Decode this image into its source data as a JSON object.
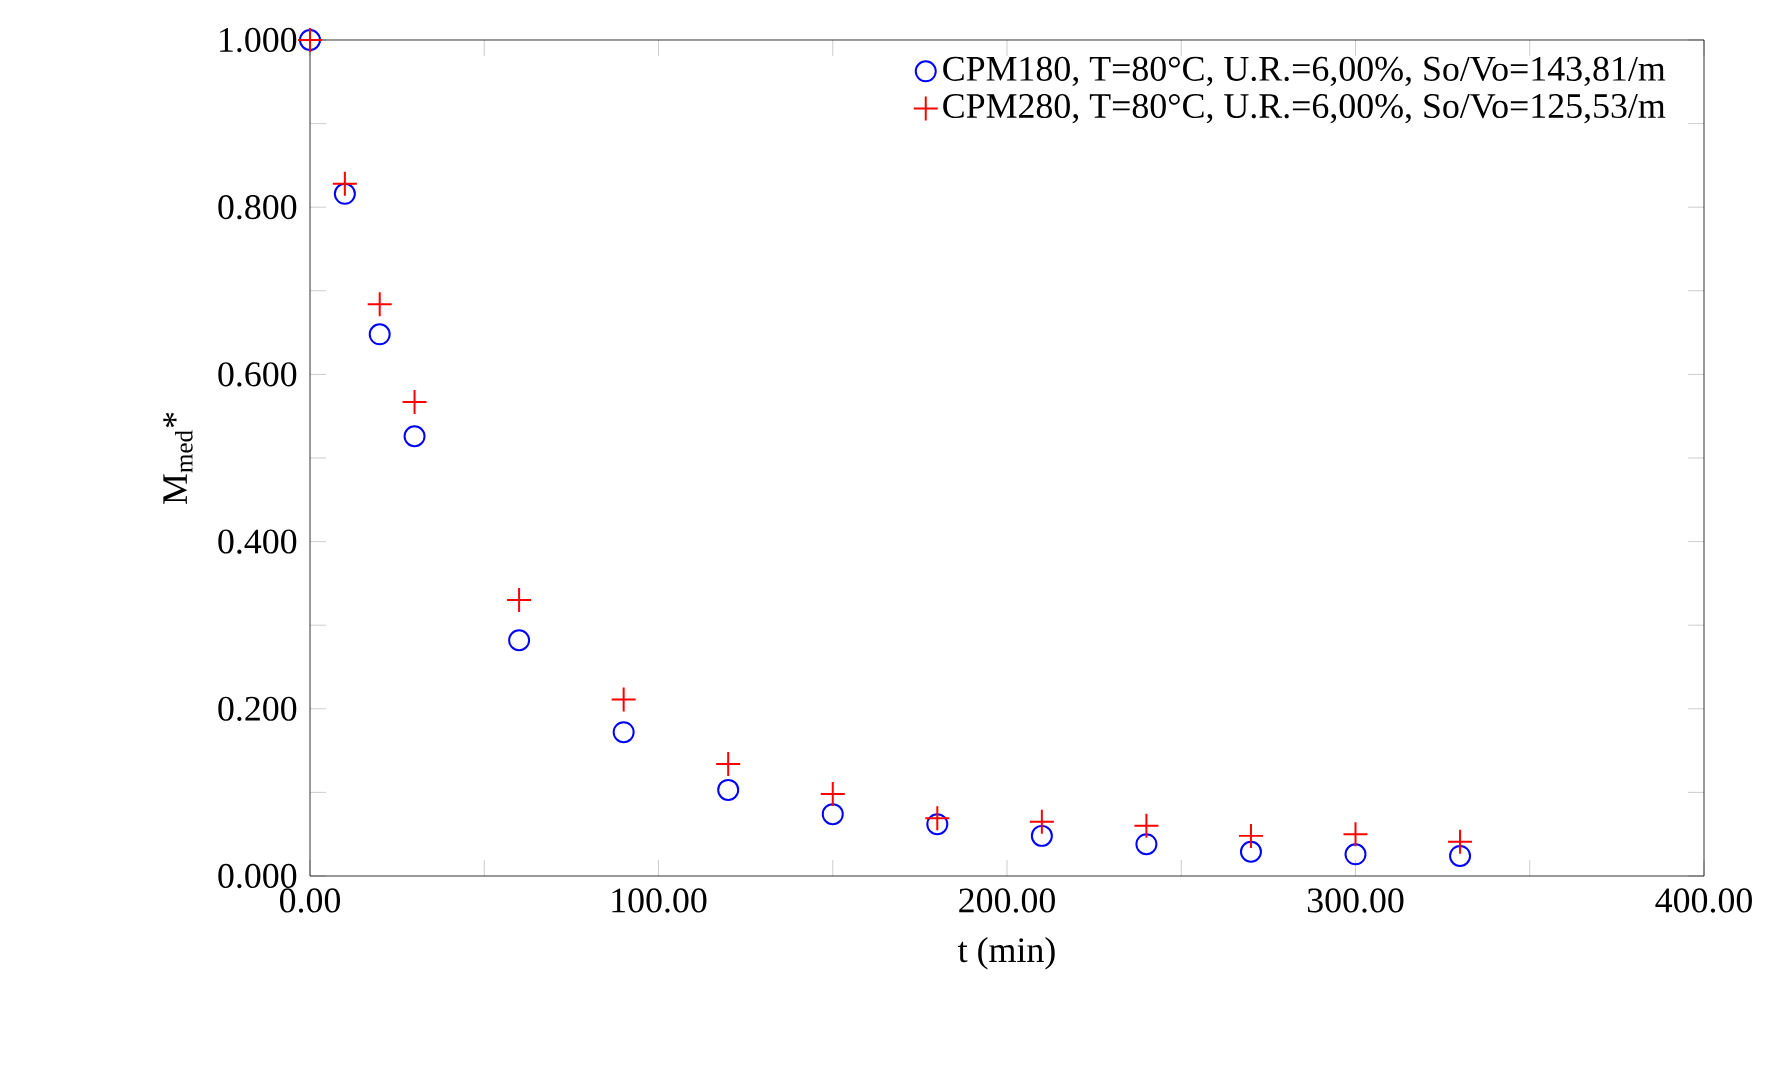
{
  "chart_data": {
    "type": "scatter",
    "xlabel": "t (min)",
    "ylabel": "M$_{med}$*",
    "x": [
      0,
      10,
      20,
      30,
      60,
      90,
      120,
      150,
      180,
      210,
      240,
      270,
      300,
      330
    ],
    "series": [
      {
        "name": "CPM180, T=80°C, U.R.=6,00%, So/Vo=143,81/m",
        "color": "#0000ff",
        "marker": "circle",
        "values": [
          1.0,
          0.816,
          0.648,
          0.526,
          0.282,
          0.172,
          0.103,
          0.074,
          0.062,
          0.048,
          0.038,
          0.029,
          0.026,
          0.024
        ]
      },
      {
        "name": "CPM280, T=80°C, U.R.=6,00%, So/Vo=125,53/m",
        "color": "#ff0000",
        "marker": "cross",
        "values": [
          1.0,
          0.828,
          0.684,
          0.567,
          0.33,
          0.211,
          0.134,
          0.098,
          0.069,
          0.065,
          0.06,
          0.048,
          0.05,
          0.041
        ]
      }
    ],
    "xlim": [
      0,
      400
    ],
    "ylim": [
      0,
      1.0
    ],
    "xticks": [
      {
        "value": 0,
        "label": "0.00"
      },
      {
        "value": 50,
        "label": null
      },
      {
        "value": 100,
        "label": "100.00"
      },
      {
        "value": 150,
        "label": null
      },
      {
        "value": 200,
        "label": "200.00"
      },
      {
        "value": 250,
        "label": null
      },
      {
        "value": 300,
        "label": "300.00"
      },
      {
        "value": 350,
        "label": null
      },
      {
        "value": 400,
        "label": "400.00"
      }
    ],
    "yticks": [
      {
        "value": 0,
        "label": "0.000"
      },
      {
        "value": 0.1,
        "label": null
      },
      {
        "value": 0.2,
        "label": "0.200"
      },
      {
        "value": 0.3,
        "label": null
      },
      {
        "value": 0.4,
        "label": "0.400"
      },
      {
        "value": 0.5,
        "label": null
      },
      {
        "value": 0.6,
        "label": "0.600"
      },
      {
        "value": 0.7,
        "label": null
      },
      {
        "value": 0.8,
        "label": "0.800"
      },
      {
        "value": 0.9,
        "label": null
      },
      {
        "value": 1.0,
        "label": "1.000"
      }
    ],
    "legend": "top right",
    "grid": false
  }
}
